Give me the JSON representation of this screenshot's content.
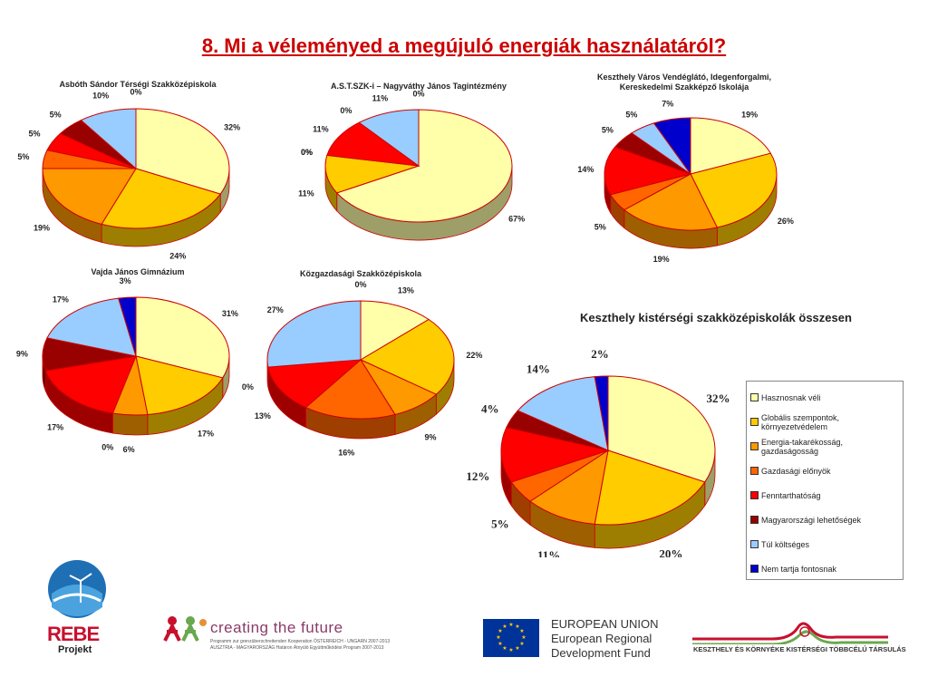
{
  "page": {
    "title": "8. Mi a véleményed a megújuló energiák használatáról?"
  },
  "colors": {
    "title": "#cc0000",
    "categories": [
      "#ffffaa",
      "#ffcc00",
      "#ff9900",
      "#ff6600",
      "#ff0000",
      "#990000",
      "#99ccff",
      "#0000cc"
    ]
  },
  "legend": {
    "items": [
      "Hasznosnak véli",
      "Globális szempontok, környezetvédelem",
      "Energia-takarékosság, gazdaságosság",
      "Gazdasági előnyök",
      "Fenntarthatóság",
      "Magyarországi lehetőségek",
      "Túl költséges",
      "Nem tartja fontosnak"
    ]
  },
  "chart_data": [
    {
      "type": "pie",
      "title": "Asbóth Sándor Térségi Szakközépiskola",
      "categories": [
        "Hasznosnak véli",
        "Globális szempontok, környezetvédelem",
        "Energia-takarékosság, gazdaságosság",
        "Gazdasági előnyök",
        "Fenntarthatóság",
        "Magyarországi lehetőségek",
        "Túl költséges",
        "Nem tartja fontosnak"
      ],
      "values": [
        32,
        24,
        19,
        5,
        5,
        5,
        10,
        0
      ],
      "labels": [
        "32%",
        "24%",
        "19%",
        "5%",
        "5%",
        "5%",
        "10%",
        "0%"
      ]
    },
    {
      "type": "pie",
      "title": "A.S.T.SZK-i – Nagyváthy János Tagintézmény",
      "categories": [
        "Hasznosnak véli",
        "Globális szempontok, környezetvédelem",
        "Energia-takarékosság, gazdaságosság",
        "Gazdasági előnyök",
        "Fenntarthatóság",
        "Magyarországi lehetőségek",
        "Túl költséges",
        "Nem tartja fontosnak"
      ],
      "values": [
        67,
        11,
        0,
        0,
        11,
        0,
        11,
        0
      ],
      "labels": [
        "67%",
        "11%",
        "0%",
        "0%",
        "11%",
        "0%",
        "11%",
        "0%"
      ]
    },
    {
      "type": "pie",
      "title": "Keszthely Város Vendéglátó, Idegenforgalmi, Kereskedelmi Szakképző Iskolája",
      "title_lines": [
        "Keszthely Város Vendéglátó, Idegenforgalmi,",
        "Kereskedelmi Szakképző Iskolája"
      ],
      "categories": [
        "Hasznosnak véli",
        "Globális szempontok, környezetvédelem",
        "Energia-takarékosság, gazdaságosság",
        "Gazdasági előnyök",
        "Fenntarthatóság",
        "Magyarországi lehetőségek",
        "Túl költséges",
        "Nem tartja fontosnak"
      ],
      "values": [
        19,
        26,
        19,
        5,
        14,
        5,
        5,
        7
      ],
      "labels": [
        "19%",
        "26%",
        "19%",
        "5%",
        "14%",
        "5%",
        "5%",
        "7%"
      ]
    },
    {
      "type": "pie",
      "title": "Vajda János Gimnázium",
      "categories": [
        "Hasznosnak véli",
        "Globális szempontok, környezetvédelem",
        "Energia-takarékosság, gazdaságosság",
        "Gazdasági előnyök",
        "Fenntarthatóság",
        "Magyarországi lehetőségek",
        "Túl költséges",
        "Nem tartja fontosnak"
      ],
      "values": [
        31,
        17,
        6,
        0,
        17,
        9,
        17,
        3
      ],
      "labels": [
        "31%",
        "17%",
        "6%",
        "0%",
        "17%",
        "9%",
        "17%",
        "3%"
      ]
    },
    {
      "type": "pie",
      "title": "Közgazdasági Szakközépiskola",
      "categories": [
        "Hasznosnak véli",
        "Globális szempontok, környezetvédelem",
        "Energia-takarékosság, gazdaságosság",
        "Gazdasági előnyök",
        "Fenntarthatóság",
        "Magyarországi lehetőségek",
        "Túl költséges",
        "Nem tartja fontosnak"
      ],
      "values": [
        13,
        22,
        9,
        16,
        13,
        0,
        27,
        0
      ],
      "labels": [
        "13%",
        "22%",
        "9%",
        "16%",
        "13%",
        "0%",
        "27%",
        "0%"
      ]
    },
    {
      "type": "pie",
      "title": "Keszthely kistérségi szakközépiskolák összesen",
      "categories": [
        "Hasznosnak véli",
        "Globális szempontok, környezetvédelem",
        "Energia-takarékosság, gazdaságosság",
        "Gazdasági előnyök",
        "Fenntarthatóság",
        "Magyarországi lehetőségek",
        "Túl költséges",
        "Nem tartja fontosnak"
      ],
      "values": [
        32,
        20,
        11,
        5,
        12,
        4,
        14,
        2
      ],
      "labels": [
        "32%",
        "20%",
        "11%",
        "5%",
        "12%",
        "4%",
        "14%",
        "2%"
      ],
      "legend_position": "right"
    }
  ],
  "footer": {
    "rebe_logo": "REBE",
    "rebe_sub": "Projekt",
    "ctf_title": "creating the future",
    "ctf_line1": "Programm zur grenzüberschreitenden Kooperation ÖSTERREICH - UNGARN 2007-2013",
    "ctf_line2": "AUSZTRIA - MAGYARORSZÁG Határon Átnyúló Együttműködési Program 2007-2013",
    "eu_line1": "EUROPEAN UNION",
    "eu_line2": "European Regional",
    "eu_line3": "Development Fund",
    "kt_text": "KESZTHELY ÉS KÖRNYÉKE KISTÉRSÉGI TÖBBCÉLÚ TÁRSULÁS"
  }
}
